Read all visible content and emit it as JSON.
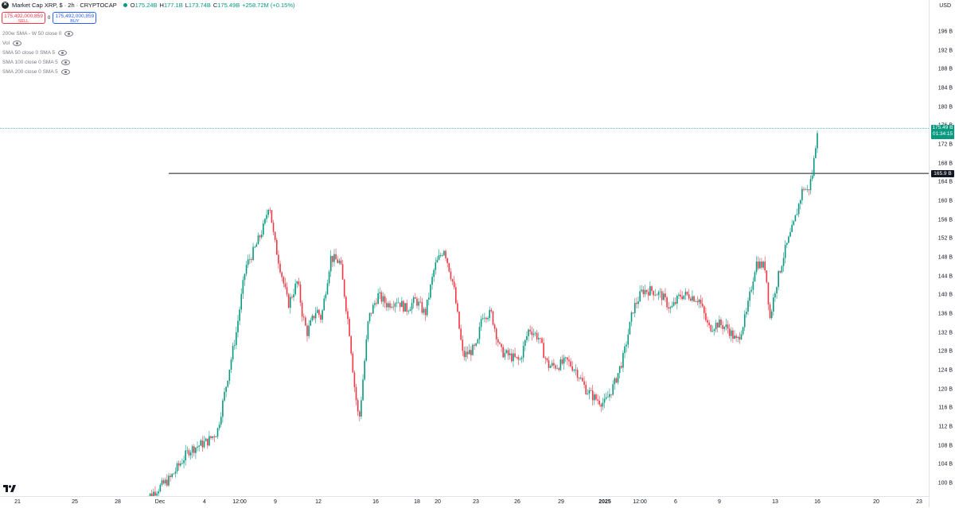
{
  "header": {
    "symbol_title": "Market Cap XRP, $ · 2h · CRYPTOCAP",
    "logo_glyph": "✕",
    "ohlc": [
      {
        "key": "O",
        "value": "175.24B"
      },
      {
        "key": "H",
        "value": "177.1B"
      },
      {
        "key": "L",
        "value": "173.74B"
      },
      {
        "key": "C",
        "value": "175.49B"
      },
      {
        "key": "",
        "value": "+258.72M (+0.15%)"
      }
    ]
  },
  "trade": {
    "sell_price": "175,492,000,859",
    "sell_label": "SELL",
    "spread": "0",
    "buy_price": "175,492,000,859",
    "buy_label": "BUY"
  },
  "indicators": [
    "200w SMA - W 50 close 0",
    "Vol",
    "SMA 50 close 0 SMA 5",
    "SMA 100 close 0 SMA 5",
    "SMA 200 close 0 SMA 5"
  ],
  "price_axis": {
    "currency": "USD",
    "ticks": [
      "196 B",
      "192 B",
      "188 B",
      "184 B",
      "180 B",
      "176 B",
      "172 B",
      "168 B",
      "164 B",
      "160 B",
      "156 B",
      "152 B",
      "148 B",
      "144 B",
      "140 B",
      "136 B",
      "132 B",
      "128 B",
      "124 B",
      "120 B",
      "116 B",
      "112 B",
      "108 B",
      "104 B",
      "100 B"
    ],
    "last_price": "175.49 B",
    "countdown": "01:34:15",
    "level_label": "165.9 B"
  },
  "time_axis": {
    "ticks": [
      {
        "label": "21",
        "bold": false
      },
      {
        "label": "25",
        "bold": false
      },
      {
        "label": "28",
        "bold": false
      },
      {
        "label": "Dec",
        "bold": false
      },
      {
        "label": "4",
        "bold": false
      },
      {
        "label": "12:00",
        "bold": false
      },
      {
        "label": "9",
        "bold": false
      },
      {
        "label": "12",
        "bold": false
      },
      {
        "label": "16",
        "bold": false
      },
      {
        "label": "18",
        "bold": false
      },
      {
        "label": "20",
        "bold": false
      },
      {
        "label": "23",
        "bold": false
      },
      {
        "label": "26",
        "bold": false
      },
      {
        "label": "29",
        "bold": false
      },
      {
        "label": "2025",
        "bold": true
      },
      {
        "label": "12:00",
        "bold": false
      },
      {
        "label": "6",
        "bold": false
      },
      {
        "label": "9",
        "bold": false
      },
      {
        "label": "13",
        "bold": false
      },
      {
        "label": "16",
        "bold": false
      },
      {
        "label": "20",
        "bold": false
      },
      {
        "label": "23",
        "bold": false
      }
    ]
  },
  "colors": {
    "up": "#089981",
    "down": "#f23645",
    "level_line": "#131722",
    "last_line": "#089981"
  },
  "chart_data": {
    "type": "candlestick",
    "unit": "B",
    "ylim": [
      98,
      199
    ],
    "horizontal_line": 165.9,
    "last_price": 175.49,
    "path_keypoints": [
      [
        0,
        96
      ],
      [
        3,
        101
      ],
      [
        5,
        107
      ],
      [
        7,
        109
      ],
      [
        8,
        111
      ],
      [
        10,
        132
      ],
      [
        11,
        146
      ],
      [
        12,
        150
      ],
      [
        13,
        155
      ],
      [
        13.5,
        160
      ],
      [
        14,
        152
      ],
      [
        15.5,
        138
      ],
      [
        16.5,
        143
      ],
      [
        17,
        136
      ],
      [
        17.5,
        132
      ],
      [
        18.5,
        137
      ],
      [
        19,
        135
      ],
      [
        20,
        148
      ],
      [
        21,
        147
      ],
      [
        22,
        132
      ],
      [
        22.5,
        121
      ],
      [
        23,
        113
      ],
      [
        24,
        135
      ],
      [
        25,
        140
      ],
      [
        26,
        138
      ],
      [
        27,
        139
      ],
      [
        28,
        137
      ],
      [
        29,
        139
      ],
      [
        30,
        136
      ],
      [
        31,
        146
      ],
      [
        32,
        150
      ],
      [
        33,
        142
      ],
      [
        34,
        127
      ],
      [
        35.5,
        129
      ],
      [
        36,
        136
      ],
      [
        37,
        136
      ],
      [
        38,
        128
      ],
      [
        39,
        127
      ],
      [
        40,
        126
      ],
      [
        41,
        133
      ],
      [
        42,
        131
      ],
      [
        43,
        125
      ],
      [
        44,
        125
      ],
      [
        45,
        126
      ],
      [
        46,
        124
      ],
      [
        47,
        120
      ],
      [
        48,
        118
      ],
      [
        49,
        117
      ],
      [
        50,
        121
      ],
      [
        51,
        127
      ],
      [
        52,
        137
      ],
      [
        53,
        141
      ],
      [
        54,
        141
      ],
      [
        55,
        140
      ],
      [
        56,
        137
      ],
      [
        57,
        140
      ],
      [
        58,
        140
      ],
      [
        59,
        139
      ],
      [
        60,
        133
      ],
      [
        61,
        134
      ],
      [
        62,
        133
      ],
      [
        63,
        130
      ],
      [
        64,
        136
      ],
      [
        65,
        147
      ],
      [
        66,
        146
      ],
      [
        66.5,
        135
      ],
      [
        67,
        141
      ],
      [
        68,
        149
      ],
      [
        69,
        155
      ],
      [
        70,
        163
      ],
      [
        70.5,
        162
      ],
      [
        71,
        166
      ],
      [
        71.5,
        175.49
      ]
    ]
  }
}
